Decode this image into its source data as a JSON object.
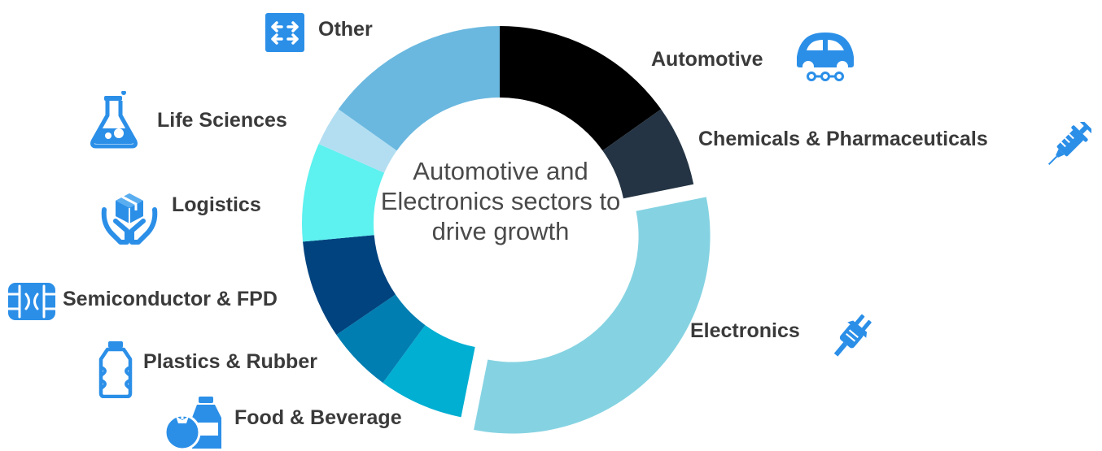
{
  "chart_data": {
    "type": "pie",
    "variant": "donut",
    "center_text": "Automotive and Electronics sectors to drive growth",
    "exploded_segment": "Electronics",
    "segments": [
      {
        "label": "Automotive",
        "value": 16,
        "color": "#000000",
        "icon": "car-icon"
      },
      {
        "label": "Chemicals & Pharmaceuticals",
        "value": 7,
        "color": "#243444",
        "icon": "syringe-icon"
      },
      {
        "label": "Electronics",
        "value": 33,
        "color": "#85d3e2",
        "icon": "plug-icon"
      },
      {
        "label": "Food & Beverage",
        "value": 7.3,
        "color": "#00afd2",
        "icon": "food-beverage-icon"
      },
      {
        "label": "Plastics & Rubber",
        "value": 5.7,
        "color": "#007eb1",
        "icon": "bottle-icon"
      },
      {
        "label": "Semiconductor & FPD",
        "value": 8.5,
        "color": "#00437f",
        "icon": "chip-icon"
      },
      {
        "label": "Logistics",
        "value": 8.5,
        "color": "#5df1ef",
        "icon": "hands-box-icon"
      },
      {
        "label": "Life Sciences",
        "value": 3.4,
        "color": "#b3def2",
        "icon": "flask-icon"
      },
      {
        "label": "Other",
        "value": 16,
        "color": "#6ab8df",
        "icon": "arrows-icon"
      }
    ]
  },
  "icon_color": "#2b8fe8"
}
